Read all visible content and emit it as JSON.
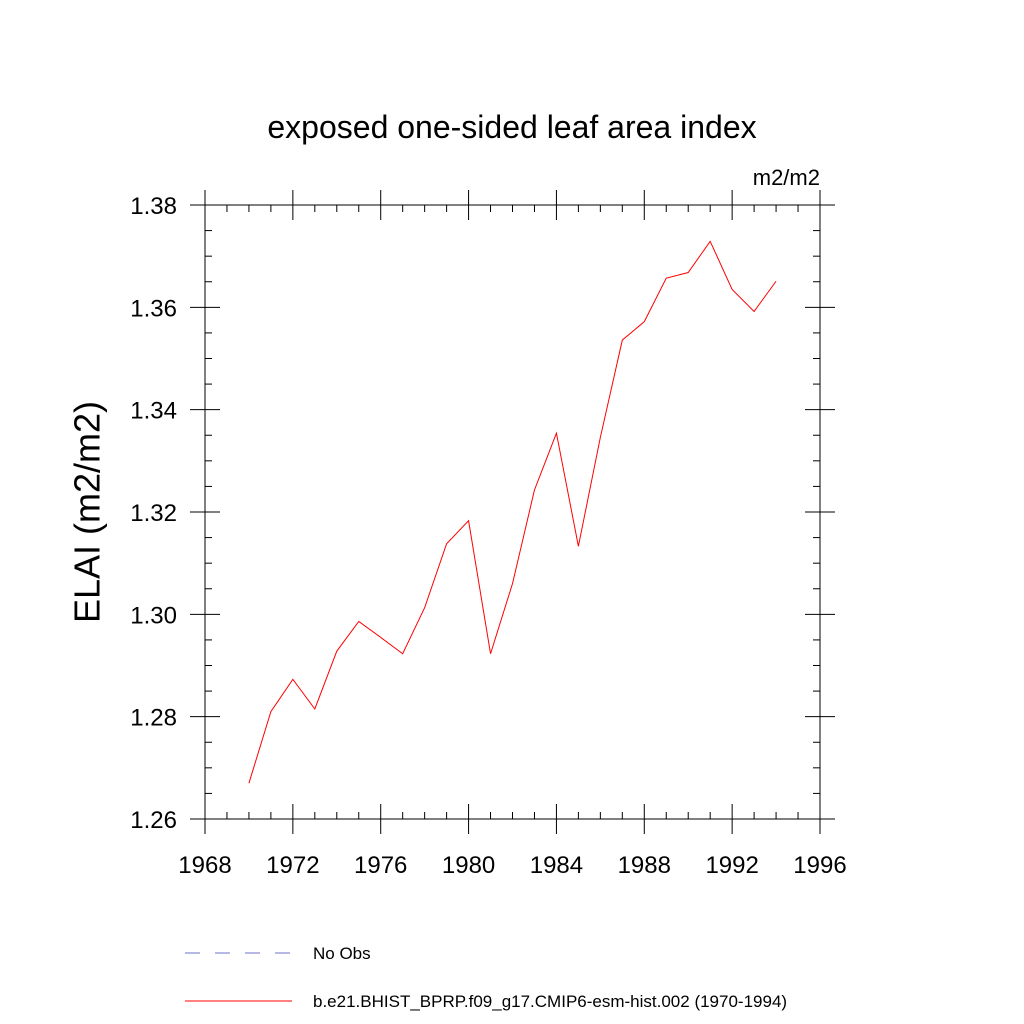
{
  "chart_data": {
    "type": "line",
    "title": "exposed one-sided leaf area index",
    "units_label": "m2/m2",
    "xlabel": "",
    "ylabel": "ELAI  (m2/m2)",
    "xlim": [
      1968,
      1996
    ],
    "ylim": [
      1.26,
      1.38
    ],
    "x_ticks": [
      1968,
      1972,
      1976,
      1980,
      1984,
      1988,
      1992,
      1996
    ],
    "x_tick_labels": [
      "1968",
      "1972",
      "1976",
      "1980",
      "1984",
      "1988",
      "1992",
      "1996"
    ],
    "y_ticks": [
      1.26,
      1.28,
      1.3,
      1.32,
      1.34,
      1.36,
      1.38
    ],
    "y_tick_labels": [
      "1.26",
      "1.28",
      "1.30",
      "1.32",
      "1.34",
      "1.36",
      "1.38"
    ],
    "x_minor_step": 1,
    "y_minor_step": 0.005,
    "grid": false,
    "legend_position": "bottom",
    "x": [
      1970,
      1971,
      1972,
      1973,
      1974,
      1975,
      1976,
      1977,
      1978,
      1979,
      1980,
      1981,
      1982,
      1983,
      1984,
      1985,
      1986,
      1987,
      1988,
      1989,
      1990,
      1991,
      1992,
      1993,
      1994
    ],
    "series": [
      {
        "name": "b.e21.BHIST_BPRP.f09_g17.CMIP6-esm-hist.002 (1970-1994)",
        "color": "#ff0000",
        "dash": "solid",
        "values": [
          1.267,
          1.281,
          1.2873,
          1.2815,
          1.2928,
          1.2986,
          1.2955,
          1.2923,
          1.3013,
          1.3138,
          1.3183,
          1.2923,
          1.306,
          1.3243,
          1.3354,
          1.3133,
          1.3346,
          1.3536,
          1.3572,
          1.3657,
          1.3668,
          1.3729,
          1.3635,
          1.3592,
          1.3651
        ]
      }
    ],
    "legend_entries": [
      {
        "label": "No Obs",
        "color": "#7070c8",
        "dash": "dashed"
      },
      {
        "label": "b.e21.BHIST_BPRP.f09_g17.CMIP6-esm-hist.002 (1970-1994)",
        "color": "#ff0000",
        "dash": "solid"
      }
    ]
  }
}
